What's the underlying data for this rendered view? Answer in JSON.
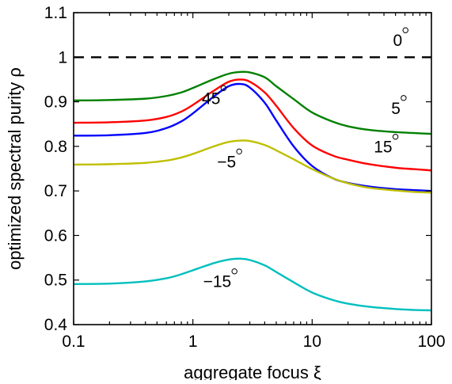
{
  "chart_data": {
    "type": "line",
    "title": "",
    "xlabel": "aggregate focus ξ",
    "ylabel": "optimized spectral purity ρ",
    "xscale": "log",
    "xlim": [
      0.1,
      100
    ],
    "ylim": [
      0.4,
      1.1
    ],
    "xticks": [
      0.1,
      1,
      10,
      100
    ],
    "xtick_labels": [
      "0.1",
      "1",
      "10",
      "100"
    ],
    "yticks": [
      0.4,
      0.5,
      0.6,
      0.7,
      0.8,
      0.9,
      1.0,
      1.1
    ],
    "ytick_labels": [
      "0.4",
      "0.5",
      "0.6",
      "0.7",
      "0.8",
      "0.9",
      "1",
      "1.1"
    ],
    "grid": false,
    "legend": "none (curves labeled inline)",
    "series": [
      {
        "name": "0°",
        "label_text": "0",
        "color": "#000000",
        "dashed": true,
        "x": [
          0.1,
          100
        ],
        "y": [
          1.0,
          1.0
        ],
        "label_at": [
          57,
          1.025
        ]
      },
      {
        "name": "5°",
        "label_text": "5",
        "color": "#008000",
        "dashed": false,
        "x": [
          0.1,
          0.2,
          0.4,
          0.6,
          0.8,
          1.0,
          1.5,
          2.0,
          2.5,
          3.0,
          4.0,
          5.0,
          7.0,
          10.0,
          15.0,
          20.0,
          30.0,
          50.0,
          70.0,
          100.0
        ],
        "y": [
          0.903,
          0.904,
          0.907,
          0.913,
          0.921,
          0.931,
          0.951,
          0.963,
          0.967,
          0.966,
          0.955,
          0.935,
          0.906,
          0.876,
          0.855,
          0.845,
          0.837,
          0.832,
          0.83,
          0.828
        ],
        "label_at": [
          55,
          0.873
        ]
      },
      {
        "name": "15°",
        "label_text": "15",
        "color": "#ff0000",
        "dashed": false,
        "x": [
          0.1,
          0.2,
          0.4,
          0.6,
          0.8,
          1.0,
          1.5,
          2.0,
          2.5,
          3.0,
          4.0,
          5.0,
          7.0,
          10.0,
          15.0,
          20.0,
          30.0,
          50.0,
          70.0,
          100.0
        ],
        "y": [
          0.853,
          0.854,
          0.858,
          0.866,
          0.878,
          0.893,
          0.925,
          0.945,
          0.95,
          0.945,
          0.921,
          0.891,
          0.841,
          0.802,
          0.779,
          0.77,
          0.76,
          0.752,
          0.749,
          0.746
        ],
        "label_at": [
          47,
          0.786
        ]
      },
      {
        "name": "45°",
        "label_text": "45",
        "color": "#0000ff",
        "dashed": false,
        "x": [
          0.1,
          0.2,
          0.4,
          0.6,
          0.8,
          1.0,
          1.5,
          2.0,
          2.5,
          3.0,
          4.0,
          5.0,
          7.0,
          10.0,
          15.0,
          20.0,
          30.0,
          50.0,
          70.0,
          100.0
        ],
        "y": [
          0.824,
          0.825,
          0.83,
          0.841,
          0.856,
          0.874,
          0.912,
          0.935,
          0.94,
          0.932,
          0.898,
          0.858,
          0.8,
          0.756,
          0.728,
          0.718,
          0.71,
          0.704,
          0.702,
          0.7
        ],
        "label_at": [
          1.7,
          0.895
        ]
      },
      {
        "name": "−5°",
        "label_text": "−5",
        "color": "#bfbf00",
        "dashed": false,
        "x": [
          0.1,
          0.2,
          0.4,
          0.6,
          0.8,
          1.0,
          1.5,
          2.0,
          2.5,
          3.0,
          4.0,
          5.0,
          7.0,
          10.0,
          15.0,
          20.0,
          30.0,
          50.0,
          70.0,
          100.0
        ],
        "y": [
          0.759,
          0.76,
          0.763,
          0.768,
          0.775,
          0.783,
          0.8,
          0.81,
          0.813,
          0.812,
          0.803,
          0.791,
          0.771,
          0.749,
          0.728,
          0.717,
          0.707,
          0.701,
          0.698,
          0.696
        ],
        "label_at": [
          2.3,
          0.753
        ]
      },
      {
        "name": "−15°",
        "label_text": "−15",
        "color": "#00bfbf",
        "dashed": false,
        "x": [
          0.1,
          0.2,
          0.4,
          0.6,
          0.8,
          1.0,
          1.5,
          2.0,
          2.5,
          3.0,
          4.0,
          5.0,
          7.0,
          10.0,
          15.0,
          20.0,
          30.0,
          50.0,
          70.0,
          100.0
        ],
        "y": [
          0.491,
          0.492,
          0.497,
          0.504,
          0.513,
          0.522,
          0.538,
          0.546,
          0.548,
          0.545,
          0.533,
          0.518,
          0.495,
          0.472,
          0.455,
          0.447,
          0.44,
          0.435,
          0.433,
          0.432
        ],
        "label_at": [
          2.1,
          0.484
        ]
      }
    ]
  }
}
